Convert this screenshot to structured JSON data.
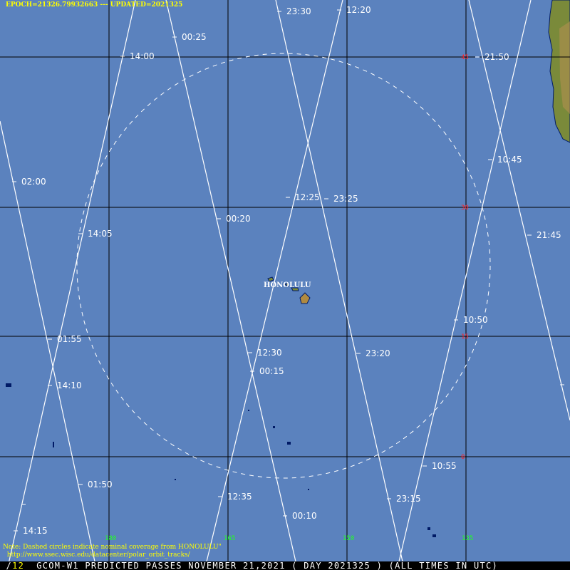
{
  "header": {
    "epoch": "EPOCH=21326.79932663",
    "sep": " --- ",
    "updated": "UPDATED=2021325"
  },
  "note": {
    "line1": "Note: Dashed circles indicate nominal coverage from HONOLULU\"",
    "line2": "  http://www.ssec.wisc.edu/datacenter/polar_orbit_tracks/"
  },
  "footer": {
    "page": "12",
    "title": "GCOM-W1 PREDICTED PASSES NOVEMBER_21,2021 ( DAY 2021325 ) (ALL TIMES IN UTC)"
  },
  "station": {
    "name": "HONOLULU"
  },
  "latitudes": [
    "45",
    "30",
    "15",
    "0"
  ],
  "longitudes": [
    "180",
    "165",
    "150",
    "135"
  ],
  "colors": {
    "ocean": "#5b82be",
    "grid": "#000000",
    "track": "#ffffff",
    "lat_label": "#ff2020",
    "lon_label": "#20ff20",
    "header_text": "#ffff00"
  },
  "tracks": [
    {
      "times": [
        "00:25",
        "00:20",
        "00:15",
        "00:10"
      ]
    },
    {
      "times": [
        "02:00",
        "01:55",
        "01:50"
      ]
    },
    {
      "times": [
        "14:00",
        "14:05",
        "14:10",
        "14:15"
      ]
    },
    {
      "times": [
        "12:20",
        "12:25",
        "12:30",
        "12:35"
      ]
    },
    {
      "times": [
        "23:30",
        "23:25",
        "23:20",
        "23:15"
      ]
    },
    {
      "times": [
        "21:50",
        "21:45"
      ]
    },
    {
      "times": [
        "10:45",
        "10:50",
        "10:55"
      ]
    }
  ]
}
